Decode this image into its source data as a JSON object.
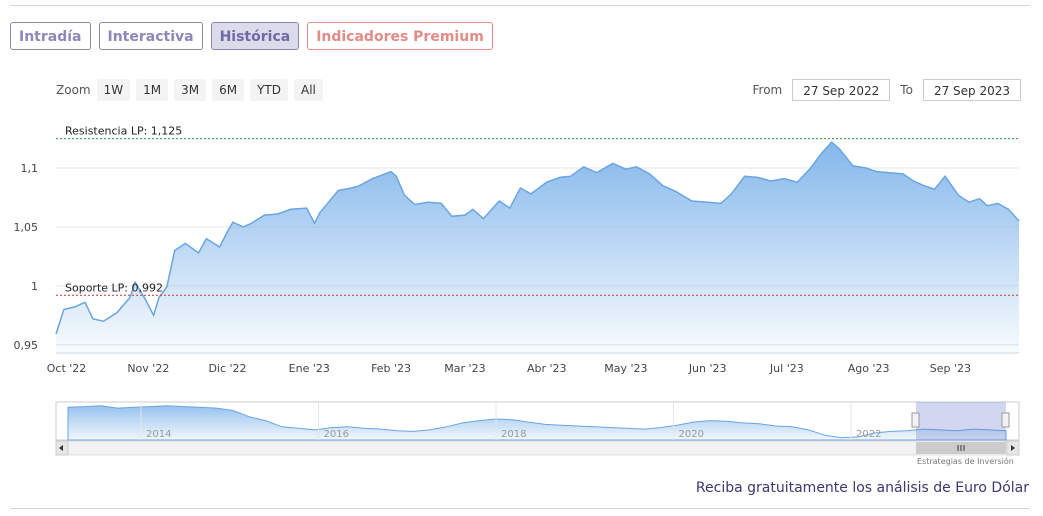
{
  "tabs": [
    {
      "label": "Intradía",
      "state": "normal"
    },
    {
      "label": "Interactiva",
      "state": "normal"
    },
    {
      "label": "Histórica",
      "state": "active"
    },
    {
      "label": "Indicadores Premium",
      "state": "premium"
    }
  ],
  "zoom": {
    "label": "Zoom",
    "buttons": [
      "1W",
      "1M",
      "3M",
      "6M",
      "YTD",
      "All"
    ]
  },
  "range": {
    "from_label": "From",
    "from_value": "27 Sep 2022",
    "to_label": "To",
    "to_value": "27 Sep 2023"
  },
  "credits": "Estrategias de Inversión",
  "footer_link": "Reciba gratuitamente los análisis de Euro Dólar",
  "colors": {
    "line": "#6aa5e0",
    "area_top": "#7db3ea",
    "resistance": "#2f8a3f",
    "support": "#c0392b",
    "tab": "#8d88b8",
    "premium": "#e38b87"
  },
  "chart_data": {
    "type": "area",
    "x_tick_labels": [
      "Oct '22",
      "Nov '22",
      "Dic '22",
      "Ene '23",
      "Feb '23",
      "Mar '23",
      "Abr '23",
      "May '23",
      "Jun '23",
      "Jul '23",
      "Ago '23",
      "Sep '23"
    ],
    "y_tick_labels": [
      "0,95",
      "1",
      "1,05",
      "1,1"
    ],
    "y_ticks": [
      0.95,
      1.0,
      1.05,
      1.1
    ],
    "ylim": [
      0.943,
      1.145
    ],
    "x_domain": [
      "2022-09-27",
      "2023-09-27"
    ],
    "grid": true,
    "plot_lines": [
      {
        "label": "Resistencia LP: 1,125",
        "value": 1.125,
        "style": "dashed",
        "color": "green"
      },
      {
        "label": "Soporte LP: 0,992",
        "value": 0.992,
        "style": "dashed",
        "color": "red"
      }
    ],
    "series": [
      {
        "points": [
          [
            "2022-09-27",
            0.959
          ],
          [
            "2022-09-30",
            0.98
          ],
          [
            "2022-10-04",
            0.982
          ],
          [
            "2022-10-08",
            0.986
          ],
          [
            "2022-10-11",
            0.972
          ],
          [
            "2022-10-15",
            0.97
          ],
          [
            "2022-10-20",
            0.977
          ],
          [
            "2022-10-25",
            0.99
          ],
          [
            "2022-10-27",
            1.003
          ],
          [
            "2022-10-31",
            0.988
          ],
          [
            "2022-11-03",
            0.975
          ],
          [
            "2022-11-05",
            0.99
          ],
          [
            "2022-11-08",
            0.999
          ],
          [
            "2022-11-11",
            1.03
          ],
          [
            "2022-11-15",
            1.036
          ],
          [
            "2022-11-20",
            1.028
          ],
          [
            "2022-11-23",
            1.04
          ],
          [
            "2022-11-28",
            1.033
          ],
          [
            "2022-12-01",
            1.046
          ],
          [
            "2022-12-03",
            1.054
          ],
          [
            "2022-12-07",
            1.05
          ],
          [
            "2022-12-10",
            1.053
          ],
          [
            "2022-12-15",
            1.06
          ],
          [
            "2022-12-20",
            1.061
          ],
          [
            "2022-12-25",
            1.065
          ],
          [
            "2022-12-31",
            1.066
          ],
          [
            "2023-01-03",
            1.053
          ],
          [
            "2023-01-05",
            1.062
          ],
          [
            "2023-01-12",
            1.081
          ],
          [
            "2023-01-17",
            1.083
          ],
          [
            "2023-01-20",
            1.085
          ],
          [
            "2023-01-25",
            1.091
          ],
          [
            "2023-02-01",
            1.097
          ],
          [
            "2023-02-03",
            1.093
          ],
          [
            "2023-02-06",
            1.077
          ],
          [
            "2023-02-10",
            1.069
          ],
          [
            "2023-02-15",
            1.071
          ],
          [
            "2023-02-20",
            1.07
          ],
          [
            "2023-02-24",
            1.059
          ],
          [
            "2023-03-01",
            1.06
          ],
          [
            "2023-03-04",
            1.065
          ],
          [
            "2023-03-08",
            1.057
          ],
          [
            "2023-03-14",
            1.072
          ],
          [
            "2023-03-18",
            1.066
          ],
          [
            "2023-03-22",
            1.083
          ],
          [
            "2023-03-26",
            1.078
          ],
          [
            "2023-04-01",
            1.088
          ],
          [
            "2023-04-06",
            1.092
          ],
          [
            "2023-04-10",
            1.093
          ],
          [
            "2023-04-15",
            1.101
          ],
          [
            "2023-04-20",
            1.096
          ],
          [
            "2023-04-26",
            1.104
          ],
          [
            "2023-05-01",
            1.099
          ],
          [
            "2023-05-05",
            1.101
          ],
          [
            "2023-05-10",
            1.095
          ],
          [
            "2023-05-15",
            1.085
          ],
          [
            "2023-05-20",
            1.08
          ],
          [
            "2023-05-26",
            1.072
          ],
          [
            "2023-06-01",
            1.071
          ],
          [
            "2023-06-06",
            1.07
          ],
          [
            "2023-06-10",
            1.078
          ],
          [
            "2023-06-15",
            1.093
          ],
          [
            "2023-06-20",
            1.092
          ],
          [
            "2023-06-25",
            1.089
          ],
          [
            "2023-06-30",
            1.091
          ],
          [
            "2023-07-05",
            1.088
          ],
          [
            "2023-07-10",
            1.1
          ],
          [
            "2023-07-14",
            1.112
          ],
          [
            "2023-07-18",
            1.122
          ],
          [
            "2023-07-21",
            1.116
          ],
          [
            "2023-07-26",
            1.102
          ],
          [
            "2023-07-31",
            1.1
          ],
          [
            "2023-08-04",
            1.097
          ],
          [
            "2023-08-09",
            1.096
          ],
          [
            "2023-08-14",
            1.095
          ],
          [
            "2023-08-18",
            1.089
          ],
          [
            "2023-08-22",
            1.085
          ],
          [
            "2023-08-26",
            1.082
          ],
          [
            "2023-08-30",
            1.093
          ],
          [
            "2023-09-04",
            1.077
          ],
          [
            "2023-09-08",
            1.071
          ],
          [
            "2023-09-12",
            1.074
          ],
          [
            "2023-09-15",
            1.068
          ],
          [
            "2023-09-19",
            1.07
          ],
          [
            "2023-09-23",
            1.065
          ],
          [
            "2023-09-27",
            1.055
          ]
        ]
      }
    ],
    "navigator": {
      "year_labels": [
        "2014",
        "2016",
        "2018",
        "2020",
        "2022"
      ],
      "values": [
        1.37,
        1.38,
        1.39,
        1.36,
        1.37,
        1.38,
        1.39,
        1.38,
        1.37,
        1.36,
        1.33,
        1.25,
        1.2,
        1.12,
        1.1,
        1.08,
        1.11,
        1.12,
        1.1,
        1.09,
        1.07,
        1.06,
        1.08,
        1.12,
        1.17,
        1.2,
        1.22,
        1.21,
        1.18,
        1.15,
        1.14,
        1.13,
        1.12,
        1.11,
        1.1,
        1.09,
        1.11,
        1.14,
        1.18,
        1.2,
        1.19,
        1.17,
        1.16,
        1.13,
        1.12,
        1.08,
        1.01,
        0.98,
        0.99,
        1.04,
        1.06,
        1.07,
        1.09,
        1.08,
        1.07,
        1.09,
        1.08,
        1.07
      ]
    }
  }
}
